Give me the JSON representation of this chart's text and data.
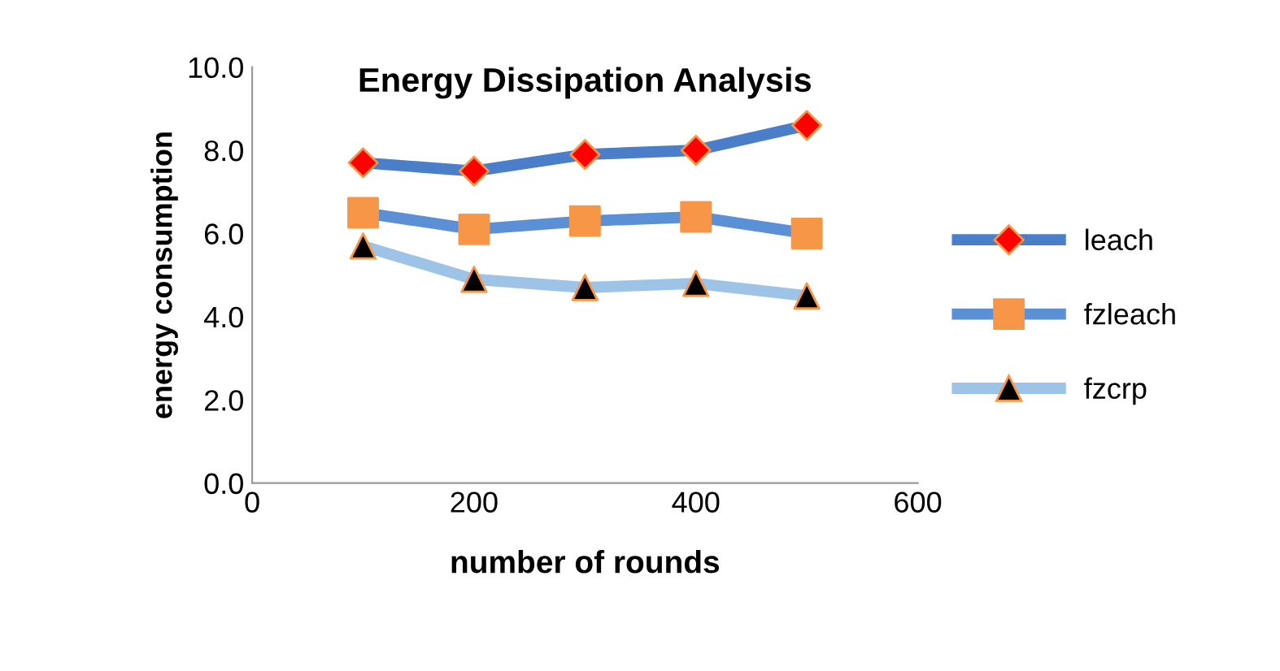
{
  "chart_data": {
    "type": "line",
    "title": "Energy Dissipation Analysis",
    "xlabel": "number of rounds",
    "ylabel": "energy consumption",
    "x": [
      100,
      200,
      300,
      400,
      500
    ],
    "series": [
      {
        "name": "leach",
        "color": "#4a7ec8",
        "marker": "diamond",
        "colors": [
          "#ff0000",
          "#ff0000",
          "#ff0000",
          "#ff0000",
          "#ff0000"
        ],
        "values": [
          7.7,
          7.5,
          7.9,
          8.0,
          8.6
        ]
      },
      {
        "name": "fzleach",
        "color": "#5b8fd6",
        "marker": "square",
        "colors": [
          "#f79646",
          "#f79646",
          "#f79646",
          "#f79646",
          "#f79646"
        ],
        "values": [
          6.5,
          6.1,
          6.3,
          6.4,
          6.0
        ]
      },
      {
        "name": "fzcrp",
        "color": "#9dc3e6",
        "marker": "triangle",
        "colors": [
          "#000000",
          "#000000",
          "#000000",
          "#000000",
          "#000000"
        ],
        "values": [
          5.7,
          4.9,
          4.7,
          4.8,
          4.5
        ]
      }
    ],
    "xlim": [
      0,
      600
    ],
    "xticks": [
      0,
      200,
      400,
      600
    ],
    "ylim": [
      0,
      10
    ],
    "yticks": [
      {
        "value": 0,
        "label": "0.0"
      },
      {
        "value": 2,
        "label": "2.0"
      },
      {
        "value": 4,
        "label": "4.0"
      },
      {
        "value": 6,
        "label": "6.0"
      },
      {
        "value": 8,
        "label": "8.0"
      },
      {
        "value": 10,
        "label": "10.0"
      }
    ],
    "grid": false,
    "legend": "right"
  }
}
